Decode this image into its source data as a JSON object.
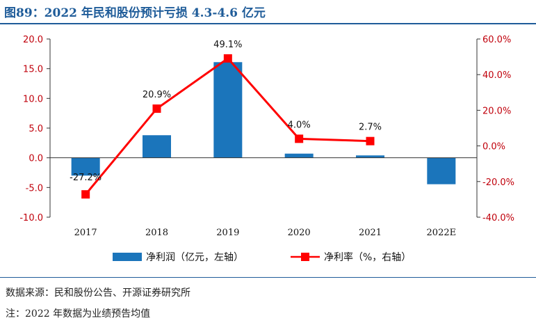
{
  "header": {
    "title": "图89：2022 年民和股份预计亏损 4.3-4.6 亿元"
  },
  "footer": {
    "source": "数据来源：民和股份公告、开源证券研究所",
    "note": "注：2022 年数据为业绩预告均值"
  },
  "colors": {
    "bar": "#1b75bb",
    "line": "#ff0000",
    "tick": "#c0000b",
    "title": "#1f5c99"
  },
  "chart_data": {
    "type": "bar",
    "categories": [
      "2017",
      "2018",
      "2019",
      "2020",
      "2021",
      "2022E"
    ],
    "series": [
      {
        "name": "净利润（亿元，左轴）",
        "type": "bar",
        "axis": "left",
        "values": [
          -3.0,
          3.8,
          16.1,
          0.7,
          0.4,
          -4.45
        ]
      },
      {
        "name": "净利率（%，右轴）",
        "type": "line",
        "axis": "right",
        "values": [
          -27.2,
          20.9,
          49.1,
          4.0,
          2.7,
          null
        ],
        "labels": [
          "-27.2%",
          "20.9%",
          "49.1%",
          "4.0%",
          "2.7%",
          ""
        ]
      }
    ],
    "y_left": {
      "min": -10,
      "max": 20,
      "ticks": [
        "20.0",
        "15.0",
        "10.0",
        "5.0",
        "0.0",
        "-5.0",
        "-10.0"
      ],
      "tick_values": [
        20,
        15,
        10,
        5,
        0,
        -5,
        -10
      ]
    },
    "y_right": {
      "min": -40,
      "max": 60,
      "ticks": [
        "60.0%",
        "40.0%",
        "20.0%",
        "0.0%",
        "-20.0%",
        "-40.0%"
      ],
      "tick_values": [
        60,
        40,
        20,
        0,
        -20,
        -40
      ]
    },
    "legend_position": "bottom",
    "grid": false
  }
}
